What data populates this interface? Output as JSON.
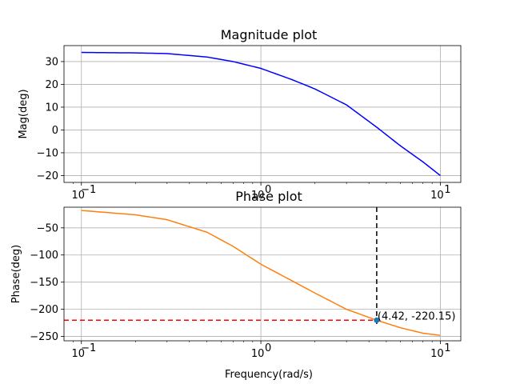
{
  "chart_data": [
    {
      "type": "line",
      "title": "Magnitude plot",
      "xlabel": "",
      "ylabel": "Mag(deg)",
      "xscale": "log",
      "xlim": [
        0.08,
        13
      ],
      "ylim": [
        -23,
        37
      ],
      "grid": true,
      "x_ticks": [
        {
          "v": 0.1,
          "label": "10",
          "exp": "−1"
        },
        {
          "v": 1,
          "label": "10",
          "exp": "0"
        },
        {
          "v": 10,
          "label": "10",
          "exp": "1"
        }
      ],
      "y_ticks": [
        {
          "v": 30,
          "label": "30"
        },
        {
          "v": 20,
          "label": "20"
        },
        {
          "v": 10,
          "label": "10"
        },
        {
          "v": 0,
          "label": "0"
        },
        {
          "v": -10,
          "label": "−10"
        },
        {
          "v": -20,
          "label": "−20"
        }
      ],
      "series": [
        {
          "color": "#0000ff",
          "x": [
            0.1,
            0.2,
            0.3,
            0.5,
            0.7,
            1.0,
            1.5,
            2.0,
            3.0,
            4.42,
            6.0,
            8.0,
            10.0
          ],
          "y": [
            34.0,
            33.8,
            33.5,
            32.0,
            30.0,
            27.0,
            22.0,
            18.0,
            11.0,
            1.2,
            -7.0,
            -14.0,
            -20.0
          ]
        }
      ]
    },
    {
      "type": "line",
      "title": "Phase plot",
      "xlabel": "Frequency(rad/s)",
      "ylabel": "Phase(deg)",
      "xscale": "log",
      "xlim": [
        0.08,
        13
      ],
      "ylim": [
        -258,
        -12
      ],
      "grid": true,
      "x_ticks": [
        {
          "v": 0.1,
          "label": "10",
          "exp": "−1"
        },
        {
          "v": 1,
          "label": "10",
          "exp": "0"
        },
        {
          "v": 10,
          "label": "10",
          "exp": "1"
        }
      ],
      "y_ticks": [
        {
          "v": -50,
          "label": "−50"
        },
        {
          "v": -100,
          "label": "−100"
        },
        {
          "v": -150,
          "label": "−150"
        },
        {
          "v": -200,
          "label": "−200"
        },
        {
          "v": -250,
          "label": "−250"
        }
      ],
      "series": [
        {
          "color": "#ff7f0e",
          "x": [
            0.1,
            0.2,
            0.3,
            0.5,
            0.7,
            1.0,
            1.5,
            2.0,
            3.0,
            4.42,
            6.0,
            8.0,
            10.0
          ],
          "y": [
            -18,
            -26,
            -35,
            -58,
            -84,
            -117,
            -148,
            -170,
            -200,
            -220.15,
            -234,
            -244,
            -248
          ]
        }
      ],
      "marker": {
        "x": 4.42,
        "y": -220.15,
        "label": "(4.42, -220.15)"
      },
      "vline": {
        "x": 4.42,
        "color": "#000000",
        "style": "dashed"
      },
      "hline": {
        "y": -220.15,
        "color": "#ff0000",
        "style": "dashed"
      }
    }
  ]
}
